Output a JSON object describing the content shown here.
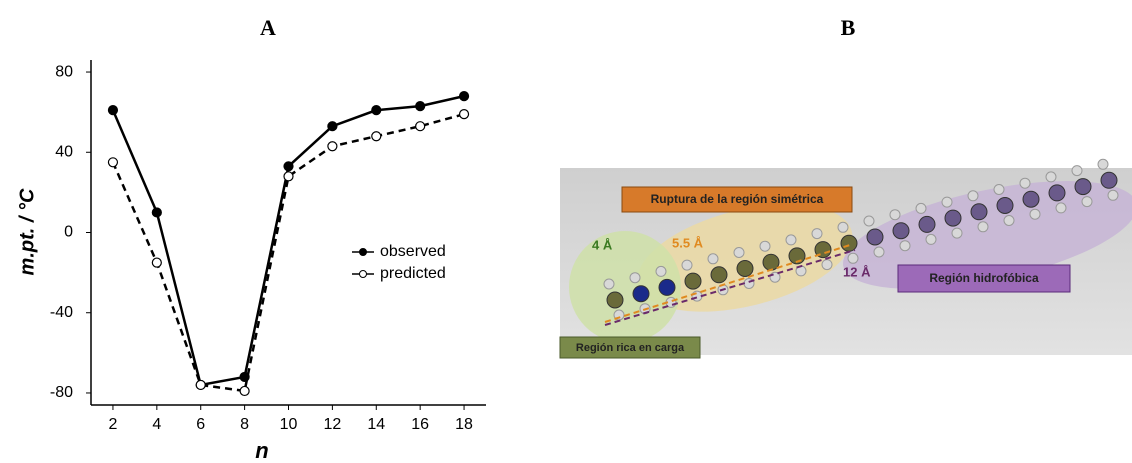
{
  "panel_labels": [
    "A",
    "B"
  ],
  "chart_data": {
    "type": "line",
    "x_label": "n",
    "y_label": "m.pt. / °C",
    "x": [
      2,
      4,
      6,
      8,
      10,
      12,
      14,
      16,
      18
    ],
    "series": [
      {
        "name": "observed",
        "color": "#000000",
        "dashed": false,
        "marker_fill": "#000000",
        "values": [
          61,
          10,
          -76,
          -72,
          33,
          53,
          61,
          63,
          68
        ]
      },
      {
        "name": "predicted",
        "color": "#000000",
        "dashed": true,
        "marker_fill": "#ffffff",
        "values": [
          35,
          -15,
          -76,
          -79,
          28,
          43,
          48,
          53,
          59
        ]
      }
    ],
    "xlim": [
      1,
      19
    ],
    "xticks": [
      2,
      4,
      6,
      8,
      10,
      12,
      14,
      16,
      18
    ],
    "ylim": [
      -86,
      86
    ],
    "yticks": [
      -80,
      -40,
      0,
      40,
      80
    ]
  },
  "figure_b": {
    "labels": [
      "Ruptura de la región simétrica",
      "4 Å",
      "5.5 Å",
      "12 Å",
      "Región hidrofóbica",
      "Región rica en carga"
    ]
  }
}
